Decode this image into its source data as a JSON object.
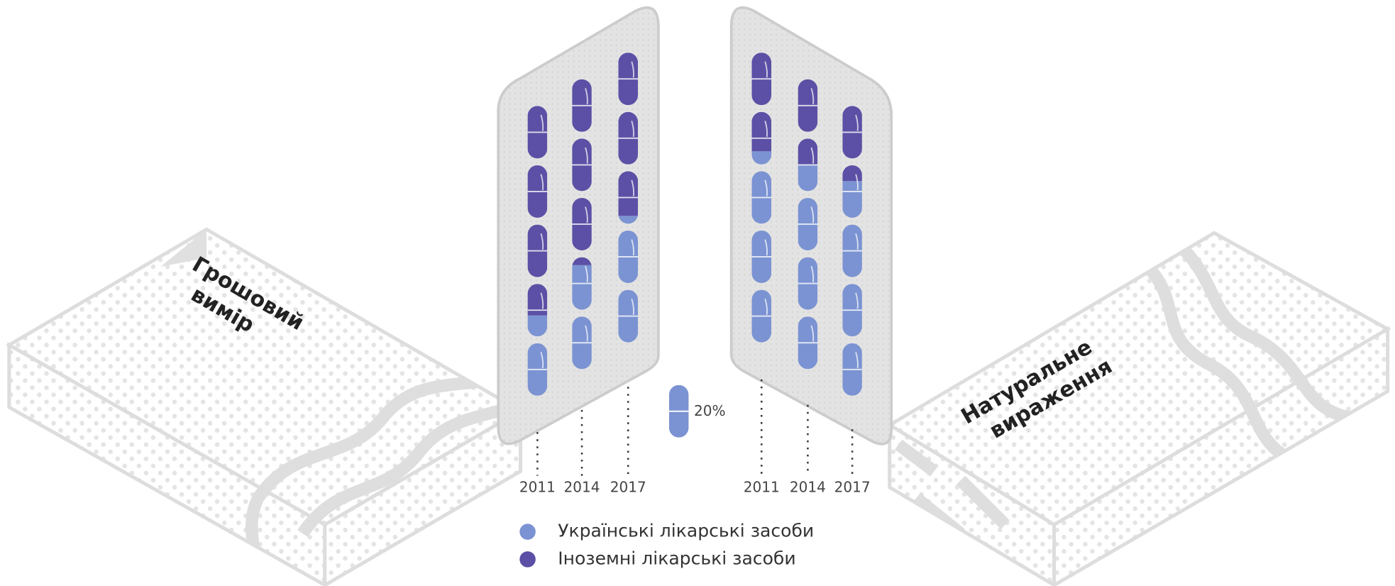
{
  "chart_data": [
    {
      "type": "capsule",
      "title": [
        "Грошовий",
        "вимір"
      ],
      "categories": [
        "2011",
        "2014",
        "2017"
      ],
      "unit": {
        "value": 20,
        "label": "20%"
      },
      "series": [
        {
          "name": "Українські лікарські засоби",
          "color": "#7b93d2",
          "values": [
            28,
            37,
            43
          ]
        },
        {
          "name": "Іноземні лікарські засоби",
          "color": "#5b50a5",
          "values": [
            72,
            63,
            57
          ]
        }
      ]
    },
    {
      "type": "capsule",
      "title": [
        "Натуральне",
        "вираження"
      ],
      "categories": [
        "2011",
        "2014",
        "2017"
      ],
      "series": [
        {
          "color": "#7b93d2",
          "values": [
            65,
            70,
            74
          ]
        },
        {
          "color": "#5b50a5",
          "values": [
            35,
            30,
            26
          ]
        }
      ]
    }
  ]
}
